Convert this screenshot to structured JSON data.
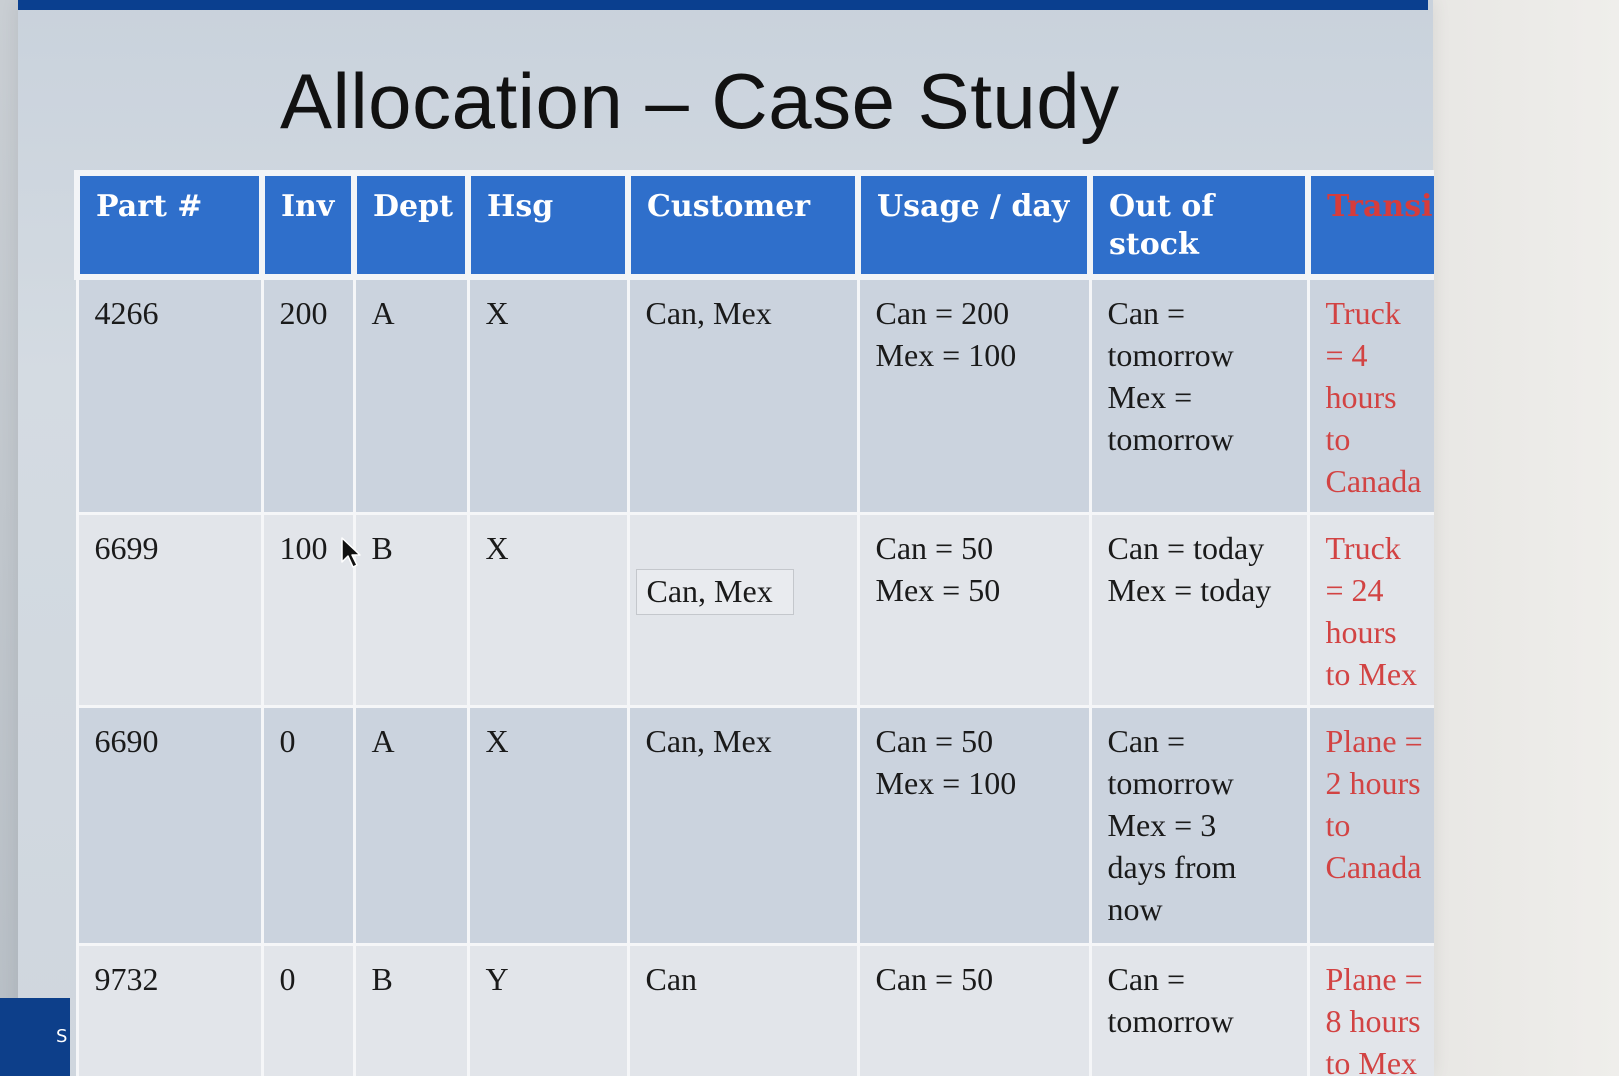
{
  "slide": {
    "title": "Allocation – Case Study",
    "corner_letter": "S"
  },
  "table": {
    "headers": [
      "Part #",
      "Inv",
      "Dept",
      "Hsg",
      "Customer",
      "Usage / day",
      "Out of\nstock",
      "Transi"
    ],
    "rows": [
      {
        "part": "4266",
        "inv": "200",
        "dept": "A",
        "hsg": "X",
        "customer": "Can, Mex",
        "usage": "Can = 200\nMex = 100",
        "out_of_stock": "Can =\ntomorrow\nMex =\ntomorrow",
        "transit": "Truck\n= 4\nhours\nto\nCanada"
      },
      {
        "part": "6699",
        "inv": "100",
        "dept": "B",
        "hsg": "X",
        "customer": "Can, Mex",
        "usage": "Can = 50\nMex = 50",
        "out_of_stock": "Can = today\nMex = today",
        "transit": "Truck\n= 24\nhours\nto Mex"
      },
      {
        "part": "6690",
        "inv": "0",
        "dept": "A",
        "hsg": "X",
        "customer": "Can, Mex",
        "usage": "Can = 50\nMex = 100",
        "out_of_stock": "Can =\ntomorrow\nMex = 3\ndays from\nnow",
        "transit": "Plane =\n2 hours\nto\nCanada"
      },
      {
        "part": "9732",
        "inv": "0",
        "dept": "B",
        "hsg": "Y",
        "customer": "Can",
        "usage": "Can = 50",
        "out_of_stock": "Can =\ntomorrow",
        "transit": "Plane =\n8 hours\nto Mex"
      }
    ]
  },
  "colors": {
    "top_bar": "#0a3f8f",
    "header_fill": "#2f6fcb",
    "transit_text": "#d24343"
  },
  "icons": {
    "cursor": "mouse-pointer-icon"
  }
}
